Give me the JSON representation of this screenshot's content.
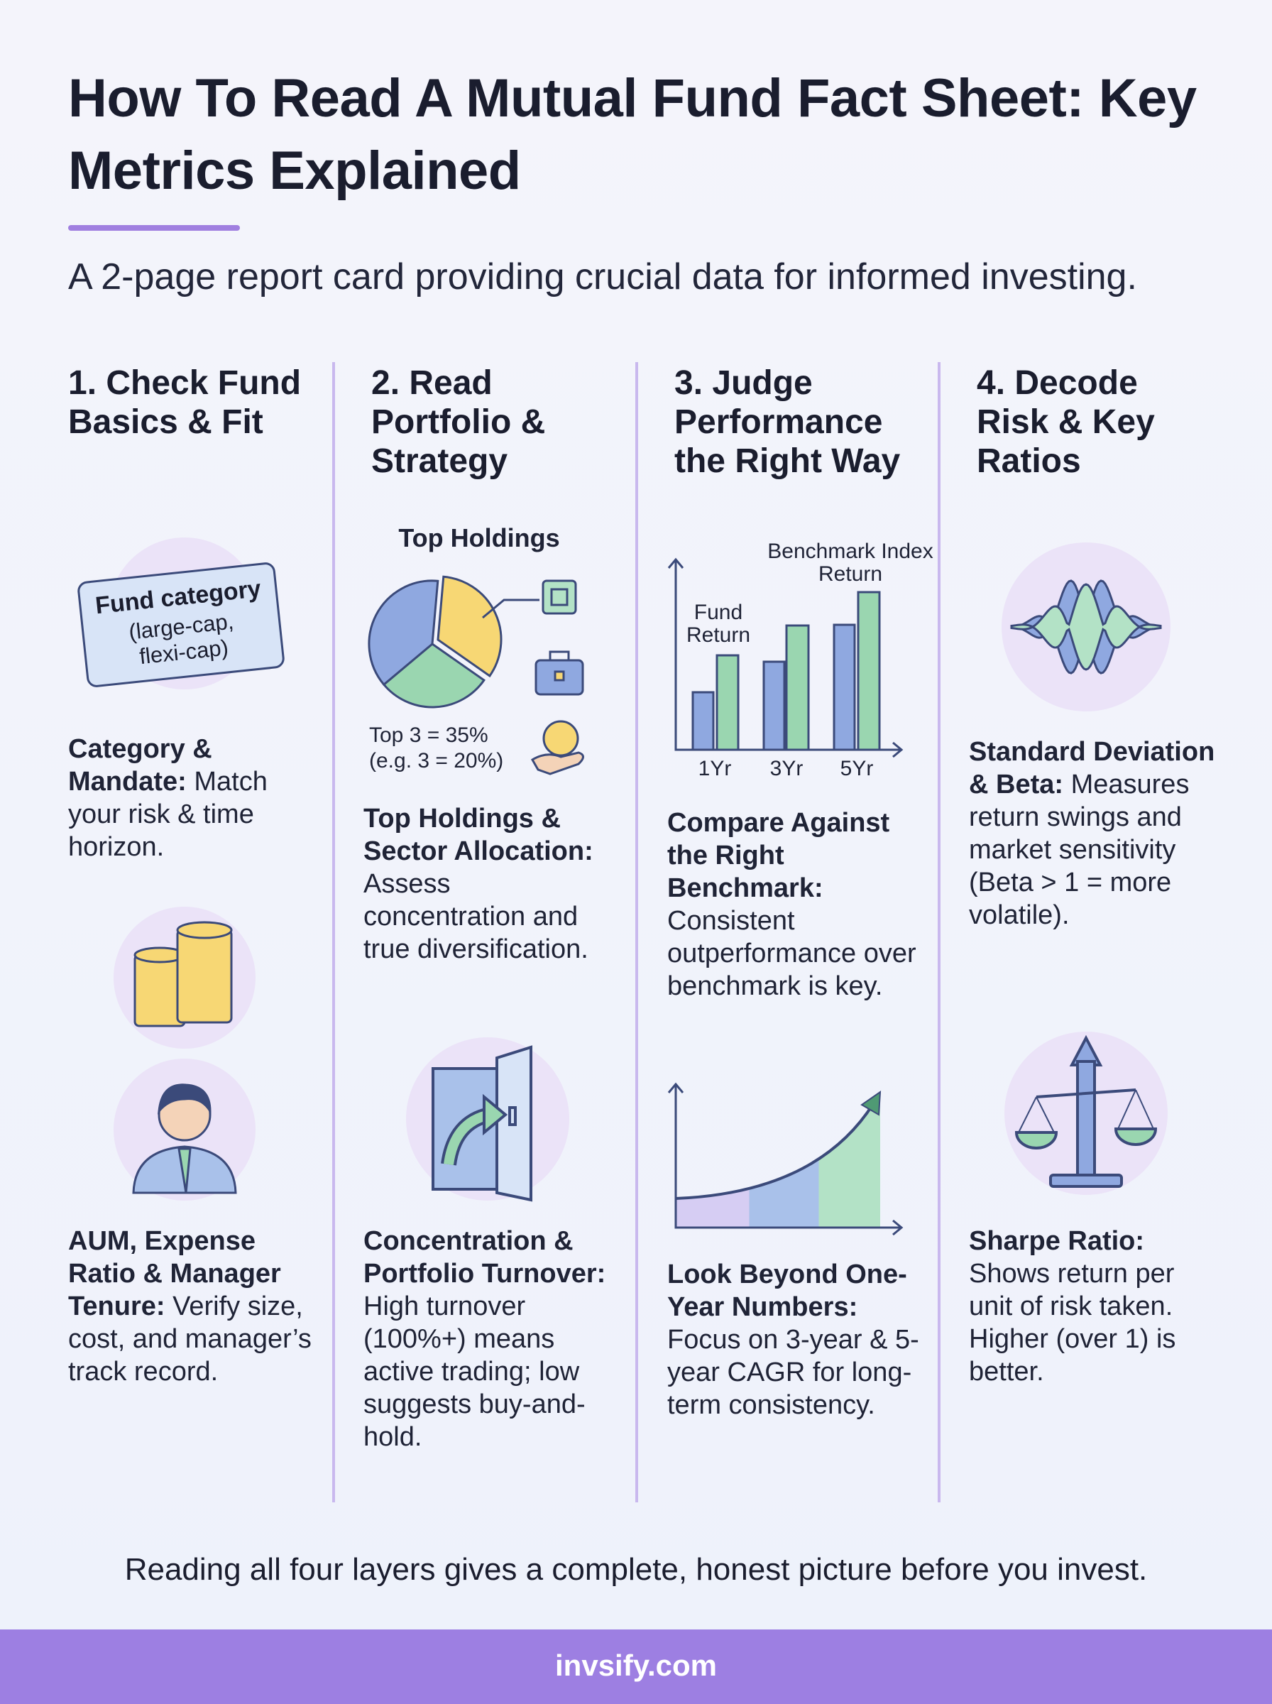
{
  "header": {
    "title": "How To Read A Mutual Fund Fact Sheet: Key Metrics Explained",
    "subtitle": "A 2-page report card providing crucial data for informed investing."
  },
  "columns": [
    {
      "heading": "1. Check Fund Basics & Fit",
      "figure": {
        "card_title": "Fund category",
        "card_text": "(large-cap, flexi-cap)"
      },
      "sections": [
        {
          "label": "Category & Mandate:",
          "text": "Match your risk & time horizon."
        },
        {
          "label": "AUM, Expense Ratio & Manager Tenure:",
          "text": "Verify size, cost, and manager’s track record."
        }
      ]
    },
    {
      "heading": "2. Read Portfolio & Strategy",
      "figure": {
        "chart_title": "Top Holdings",
        "notes": [
          "Top 3 = 35%",
          "(e.g. 3 = 20%)"
        ]
      },
      "sections": [
        {
          "label": "Top Holdings & Sector Allocation:",
          "text": "Assess concentration and true diversification."
        },
        {
          "label": "Concentration & Portfolio Turnover:",
          "text": "High turnover (100%+) means active trading; low suggests buy-and-hold."
        }
      ]
    },
    {
      "heading": "3. Judge Performance the Right Way",
      "figure": {
        "series": [
          "Fund Return",
          "Benchmark Index Return"
        ],
        "categories": [
          "1Yr",
          "3Yr",
          "5Yr"
        ]
      },
      "sections": [
        {
          "label": "Compare Against the Right Benchmark:",
          "text": "Consistent outperformance over benchmark is key."
        },
        {
          "label": "Look Beyond One-Year Numbers:",
          "text": "Focus on 3-year & 5-year CAGR for long-term consistency."
        }
      ]
    },
    {
      "heading": "4. Decode Risk & Key Ratios",
      "sections": [
        {
          "label": "Standard Deviation & Beta:",
          "text": "Measures return swings and market sensitivity (Beta > 1 = more volatile)."
        },
        {
          "label": "Sharpe Ratio:",
          "text": "Shows return per unit of risk taken. Higher (over 1) is better."
        }
      ]
    }
  ],
  "footer": {
    "note": "Reading all four layers gives a complete, honest picture before you invest.",
    "brand": "invsify.com"
  }
}
